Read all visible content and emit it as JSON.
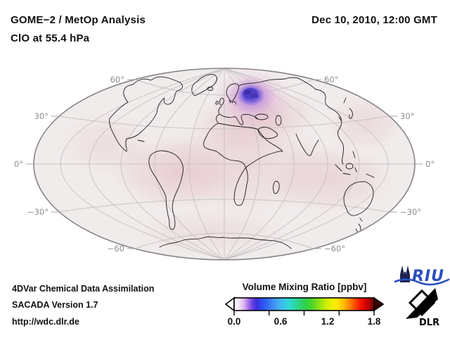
{
  "header": {
    "title_line1": "GOME−2 / MetOp Analysis",
    "title_line2": "ClO at 55.4 hPa",
    "datetime": "Dec 10, 2010, 12:00 GMT"
  },
  "map": {
    "lat_labels_left": [
      "60°",
      "30°",
      "0°",
      "−30°",
      "−60"
    ],
    "lat_labels_right": [
      "60°",
      "30°",
      "0°",
      "−30°",
      "−60°"
    ]
  },
  "colorbar": {
    "title": "Volume Mixing Ratio [ppbv]",
    "tick_labels": [
      "0.0",
      "0.6",
      "1.2",
      "1.8"
    ],
    "min": 0.0,
    "max": 1.8,
    "gradient": [
      [
        0,
        "#ffffff"
      ],
      [
        3,
        "#f6e9f9"
      ],
      [
        7,
        "#ddb6f2"
      ],
      [
        10,
        "#a873e8"
      ],
      [
        13,
        "#6b43e0"
      ],
      [
        16,
        "#3c2ee0"
      ],
      [
        19,
        "#2f46ec"
      ],
      [
        23,
        "#2f64f0"
      ],
      [
        27,
        "#3b88f2"
      ],
      [
        31,
        "#41a8f0"
      ],
      [
        35,
        "#3cc2ec"
      ],
      [
        39,
        "#32d8d8"
      ],
      [
        43,
        "#2cd8ac"
      ],
      [
        47,
        "#2ed478"
      ],
      [
        51,
        "#30d048"
      ],
      [
        55,
        "#46d42c"
      ],
      [
        59,
        "#7ade1c"
      ],
      [
        63,
        "#abe80c"
      ],
      [
        67,
        "#d8ee04"
      ],
      [
        71,
        "#f4f000"
      ],
      [
        74,
        "#ffe400"
      ],
      [
        78,
        "#ffc000"
      ],
      [
        81,
        "#ff9800"
      ],
      [
        84,
        "#ff6c00"
      ],
      [
        87,
        "#ff4000"
      ],
      [
        90,
        "#f81800"
      ],
      [
        93,
        "#e00400"
      ],
      [
        96,
        "#b80000"
      ],
      [
        98,
        "#900000"
      ],
      [
        100,
        "#6a0000"
      ]
    ]
  },
  "footer": {
    "line1": "4DVar Chemical Data Assimilation",
    "line2": "SACADA Version 1.7",
    "line3": "http://wdc.dlr.de"
  },
  "logos": {
    "riu": {
      "text": "RIU"
    },
    "dlr": {
      "text": "DLR"
    }
  },
  "colors": {
    "map_base": "#f1ecec",
    "grid": "#c9c4c4",
    "map_outline": "#878383",
    "lat_label": "#8f8b8b",
    "anomaly_core": "#4c3cc4",
    "anomaly_mid": "#b286e0",
    "anomaly_halo": "#dba6ce",
    "pink_wash": "#deaab2",
    "riu_blue": "#2b4fbe",
    "cathedral_navy": "#1d2150",
    "arrow_left_fill": "#ffffff",
    "arrow_right_fill": "#3c0000"
  }
}
